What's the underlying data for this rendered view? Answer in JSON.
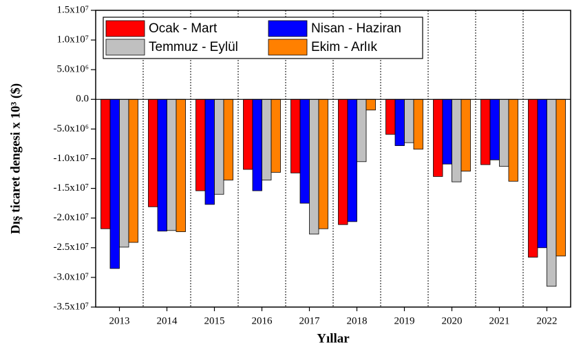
{
  "chart_data": {
    "type": "bar",
    "x_label": "Yıllar",
    "y_label": "Dış ticaret dengesi x 10³ ($)",
    "categories": [
      "2013",
      "2014",
      "2015",
      "2016",
      "2017",
      "2018",
      "2019",
      "2020",
      "2021",
      "2022"
    ],
    "series": [
      {
        "name": "Ocak - Mart",
        "color": "#ff0000",
        "values": [
          -21800000,
          -18100000,
          -15400000,
          -11800000,
          -12400000,
          -21100000,
          -5900000,
          -13000000,
          -11000000,
          -26600000
        ]
      },
      {
        "name": "Nisan - Haziran",
        "color": "#0000ff",
        "values": [
          -28500000,
          -22200000,
          -17700000,
          -15400000,
          -17500000,
          -20600000,
          -7800000,
          -10900000,
          -10200000,
          -25000000
        ]
      },
      {
        "name": "Temmuz - Eylül",
        "color": "#c0c0c0",
        "values": [
          -24900000,
          -22100000,
          -16000000,
          -13600000,
          -22700000,
          -10500000,
          -7300000,
          -13900000,
          -11300000,
          -31500000
        ]
      },
      {
        "name": "Ekim - Arlık",
        "color": "#ff8000",
        "values": [
          -24100000,
          -22300000,
          -13600000,
          -12300000,
          -21800000,
          -1800000,
          -8400000,
          -12100000,
          -13800000,
          -26400000
        ]
      }
    ],
    "ylim": [
      -35000000,
      15000000
    ],
    "yticks": [
      {
        "value": 15000000,
        "label": "1.5x10⁷"
      },
      {
        "value": 10000000,
        "label": "1.0x10⁷"
      },
      {
        "value": 5000000,
        "label": "5.0x10⁶"
      },
      {
        "value": 0,
        "label": "0.0"
      },
      {
        "value": -5000000,
        "label": "-5.0x10⁶"
      },
      {
        "value": -10000000,
        "label": "-1.0x10⁷"
      },
      {
        "value": -15000000,
        "label": "-1.5x10⁷"
      },
      {
        "value": -20000000,
        "label": "-2.0x10⁷"
      },
      {
        "value": -25000000,
        "label": "-2.5x10⁷"
      },
      {
        "value": -30000000,
        "label": "-3.0x10⁷"
      },
      {
        "value": -35000000,
        "label": "-3.5x10⁷"
      }
    ],
    "grid": true,
    "legend": "upper left"
  }
}
